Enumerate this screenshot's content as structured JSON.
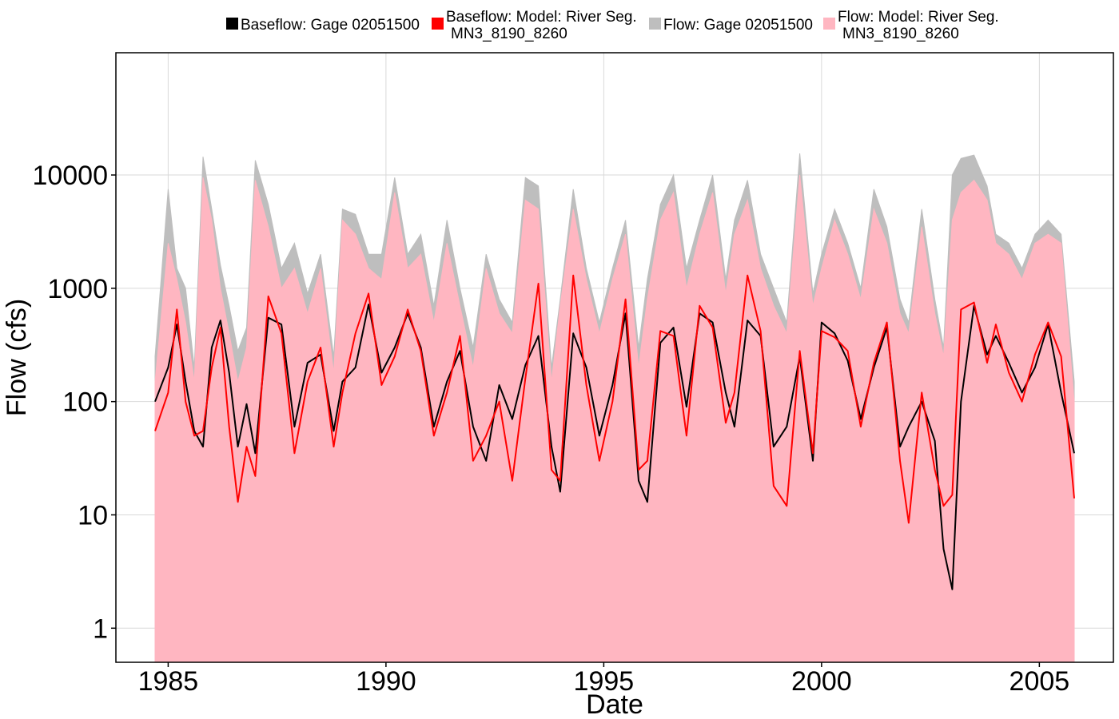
{
  "chart_data": {
    "type": "line",
    "title": "",
    "xlabel": "Date",
    "ylabel": "Flow (cfs)",
    "y_scale": "log",
    "xlim": [
      1983.8,
      2006.7
    ],
    "ylim": [
      0.5,
      120000
    ],
    "x_ticks": [
      1985,
      1990,
      1995,
      2000,
      2005
    ],
    "x_tick_labels": [
      "1985",
      "1990",
      "1995",
      "2000",
      "2005"
    ],
    "y_ticks": [
      1,
      10,
      100,
      1000,
      10000
    ],
    "y_tick_labels": [
      "1",
      "10",
      "100",
      "1000",
      "10000"
    ],
    "grid": true,
    "legend_position": "top",
    "series": [
      {
        "name_lines": [
          "Baseflow: Gage 02051500"
        ],
        "color": "#000000",
        "kind": "line",
        "x": [
          1984.7,
          1985.0,
          1985.2,
          1985.4,
          1985.6,
          1985.8,
          1986.0,
          1986.2,
          1986.4,
          1986.6,
          1986.8,
          1987.0,
          1987.3,
          1987.6,
          1987.9,
          1988.2,
          1988.5,
          1988.8,
          1989.0,
          1989.3,
          1989.6,
          1989.9,
          1990.2,
          1990.5,
          1990.8,
          1991.1,
          1991.4,
          1991.7,
          1992.0,
          1992.3,
          1992.6,
          1992.9,
          1993.2,
          1993.5,
          1993.8,
          1994.0,
          1994.3,
          1994.6,
          1994.9,
          1995.2,
          1995.5,
          1995.8,
          1996.0,
          1996.3,
          1996.6,
          1996.9,
          1997.2,
          1997.5,
          1997.8,
          1998.0,
          1998.3,
          1998.6,
          1998.9,
          1999.2,
          1999.5,
          1999.8,
          2000.0,
          2000.3,
          2000.6,
          2000.9,
          2001.2,
          2001.5,
          2001.8,
          2002.0,
          2002.3,
          2002.6,
          2002.8,
          2003.0,
          2003.2,
          2003.5,
          2003.8,
          2004.0,
          2004.3,
          2004.6,
          2004.9,
          2005.2,
          2005.5,
          2005.8
        ],
        "y": [
          100,
          200,
          480,
          150,
          55,
          40,
          300,
          520,
          180,
          40,
          95,
          35,
          550,
          480,
          60,
          220,
          260,
          55,
          150,
          200,
          720,
          180,
          300,
          600,
          300,
          60,
          150,
          280,
          60,
          30,
          140,
          70,
          210,
          380,
          40,
          16,
          400,
          200,
          50,
          140,
          600,
          20,
          13,
          330,
          450,
          90,
          600,
          500,
          120,
          60,
          520,
          380,
          40,
          60,
          250,
          30,
          500,
          400,
          230,
          70,
          200,
          450,
          40,
          60,
          100,
          45,
          5,
          2.2,
          100,
          700,
          260,
          380,
          220,
          120,
          200,
          480,
          120,
          35
        ]
      },
      {
        "name_lines": [
          "Baseflow: Model: River Seg.",
          "MN3_8190_8260"
        ],
        "color": "#ff0000",
        "kind": "line",
        "x": [
          1984.7,
          1985.0,
          1985.2,
          1985.4,
          1985.6,
          1985.8,
          1986.0,
          1986.2,
          1986.4,
          1986.6,
          1986.8,
          1987.0,
          1987.3,
          1987.6,
          1987.9,
          1988.2,
          1988.5,
          1988.8,
          1989.0,
          1989.3,
          1989.6,
          1989.9,
          1990.2,
          1990.5,
          1990.8,
          1991.1,
          1991.4,
          1991.7,
          1992.0,
          1992.3,
          1992.6,
          1992.9,
          1993.2,
          1993.5,
          1993.8,
          1994.0,
          1994.3,
          1994.6,
          1994.9,
          1995.2,
          1995.5,
          1995.8,
          1996.0,
          1996.3,
          1996.6,
          1996.9,
          1997.2,
          1997.5,
          1997.8,
          1998.0,
          1998.3,
          1998.6,
          1998.9,
          1999.2,
          1999.5,
          1999.8,
          2000.0,
          2000.3,
          2000.6,
          2000.9,
          2001.2,
          2001.5,
          2001.8,
          2002.0,
          2002.3,
          2002.6,
          2002.8,
          2003.0,
          2003.2,
          2003.5,
          2003.8,
          2004.0,
          2004.3,
          2004.6,
          2004.9,
          2005.2,
          2005.5,
          2005.8
        ],
        "y": [
          55,
          120,
          650,
          100,
          50,
          55,
          200,
          450,
          60,
          13,
          40,
          22,
          850,
          400,
          35,
          150,
          300,
          40,
          120,
          400,
          900,
          140,
          250,
          650,
          280,
          50,
          120,
          380,
          30,
          50,
          100,
          20,
          160,
          1100,
          25,
          20,
          1300,
          140,
          30,
          100,
          800,
          25,
          30,
          420,
          380,
          50,
          700,
          450,
          65,
          120,
          1300,
          420,
          18,
          12,
          280,
          35,
          420,
          370,
          280,
          60,
          220,
          500,
          30,
          8.5,
          120,
          25,
          12,
          15,
          650,
          750,
          220,
          480,
          180,
          100,
          260,
          500,
          250,
          14
        ]
      },
      {
        "name_lines": [
          "Flow: Gage 02051500"
        ],
        "color": "#bebebe",
        "kind": "area",
        "x": [
          1984.7,
          1985.0,
          1985.2,
          1985.4,
          1985.6,
          1985.8,
          1986.0,
          1986.2,
          1986.4,
          1986.6,
          1986.8,
          1987.0,
          1987.3,
          1987.6,
          1987.9,
          1988.2,
          1988.5,
          1988.8,
          1989.0,
          1989.3,
          1989.6,
          1989.9,
          1990.2,
          1990.5,
          1990.8,
          1991.1,
          1991.4,
          1991.7,
          1992.0,
          1992.3,
          1992.6,
          1992.9,
          1993.2,
          1993.5,
          1993.8,
          1994.0,
          1994.3,
          1994.6,
          1994.9,
          1995.2,
          1995.5,
          1995.8,
          1996.0,
          1996.3,
          1996.6,
          1996.9,
          1997.2,
          1997.5,
          1997.8,
          1998.0,
          1998.3,
          1998.6,
          1998.9,
          1999.2,
          1999.5,
          1999.8,
          2000.0,
          2000.3,
          2000.6,
          2000.9,
          2001.2,
          2001.5,
          2001.8,
          2002.0,
          2002.3,
          2002.6,
          2002.8,
          2003.0,
          2003.2,
          2003.5,
          2003.8,
          2004.0,
          2004.3,
          2004.6,
          2004.9,
          2005.2,
          2005.5,
          2005.8
        ],
        "y": [
          250,
          7500,
          1500,
          1000,
          200,
          14500,
          5000,
          1600,
          700,
          280,
          450,
          13500,
          5500,
          1500,
          2500,
          900,
          2000,
          250,
          5000,
          4500,
          2000,
          2000,
          9500,
          2000,
          3000,
          700,
          4000,
          1000,
          300,
          2000,
          800,
          500,
          9500,
          8000,
          200,
          800,
          7500,
          1500,
          500,
          1500,
          4000,
          300,
          1200,
          5500,
          10000,
          1500,
          4000,
          10000,
          1200,
          4000,
          9000,
          2000,
          1000,
          500,
          15500,
          900,
          2000,
          5000,
          2500,
          1000,
          7500,
          3500,
          800,
          500,
          5000,
          800,
          300,
          10000,
          14000,
          15000,
          8000,
          3000,
          2500,
          1500,
          3000,
          4000,
          3000,
          150
        ]
      },
      {
        "name_lines": [
          "Flow: Model: River Seg.",
          "MN3_8190_8260"
        ],
        "color": "#ffb6c1",
        "kind": "area",
        "x": [
          1984.7,
          1985.0,
          1985.2,
          1985.4,
          1985.6,
          1985.8,
          1986.0,
          1986.2,
          1986.4,
          1986.6,
          1986.8,
          1987.0,
          1987.3,
          1987.6,
          1987.9,
          1988.2,
          1988.5,
          1988.8,
          1989.0,
          1989.3,
          1989.6,
          1989.9,
          1990.2,
          1990.5,
          1990.8,
          1991.1,
          1991.4,
          1991.7,
          1992.0,
          1992.3,
          1992.6,
          1992.9,
          1993.2,
          1993.5,
          1993.8,
          1994.0,
          1994.3,
          1994.6,
          1994.9,
          1995.2,
          1995.5,
          1995.8,
          1996.0,
          1996.3,
          1996.6,
          1996.9,
          1997.2,
          1997.5,
          1997.8,
          1998.0,
          1998.3,
          1998.6,
          1998.9,
          1999.2,
          1999.5,
          1999.8,
          2000.0,
          2000.3,
          2000.6,
          2000.9,
          2001.2,
          2001.5,
          2001.8,
          2002.0,
          2002.3,
          2002.6,
          2002.8,
          2003.0,
          2003.2,
          2003.5,
          2003.8,
          2004.0,
          2004.3,
          2004.6,
          2004.9,
          2005.2,
          2005.5,
          2005.8
        ],
        "y": [
          150,
          2500,
          1200,
          500,
          150,
          9500,
          4000,
          1000,
          400,
          150,
          300,
          9000,
          3500,
          1000,
          1500,
          600,
          1500,
          180,
          4000,
          3000,
          1500,
          1200,
          7000,
          1500,
          2000,
          500,
          2500,
          700,
          200,
          1500,
          600,
          400,
          6000,
          5000,
          150,
          700,
          5000,
          1200,
          400,
          1200,
          3000,
          200,
          800,
          4000,
          7000,
          1000,
          3000,
          7000,
          900,
          3000,
          6000,
          1500,
          700,
          400,
          10000,
          700,
          1500,
          4000,
          2000,
          800,
          5000,
          2500,
          600,
          400,
          3500,
          600,
          250,
          4000,
          7000,
          9000,
          6000,
          2500,
          2000,
          1200,
          2500,
          3000,
          2500,
          100
        ]
      }
    ]
  }
}
